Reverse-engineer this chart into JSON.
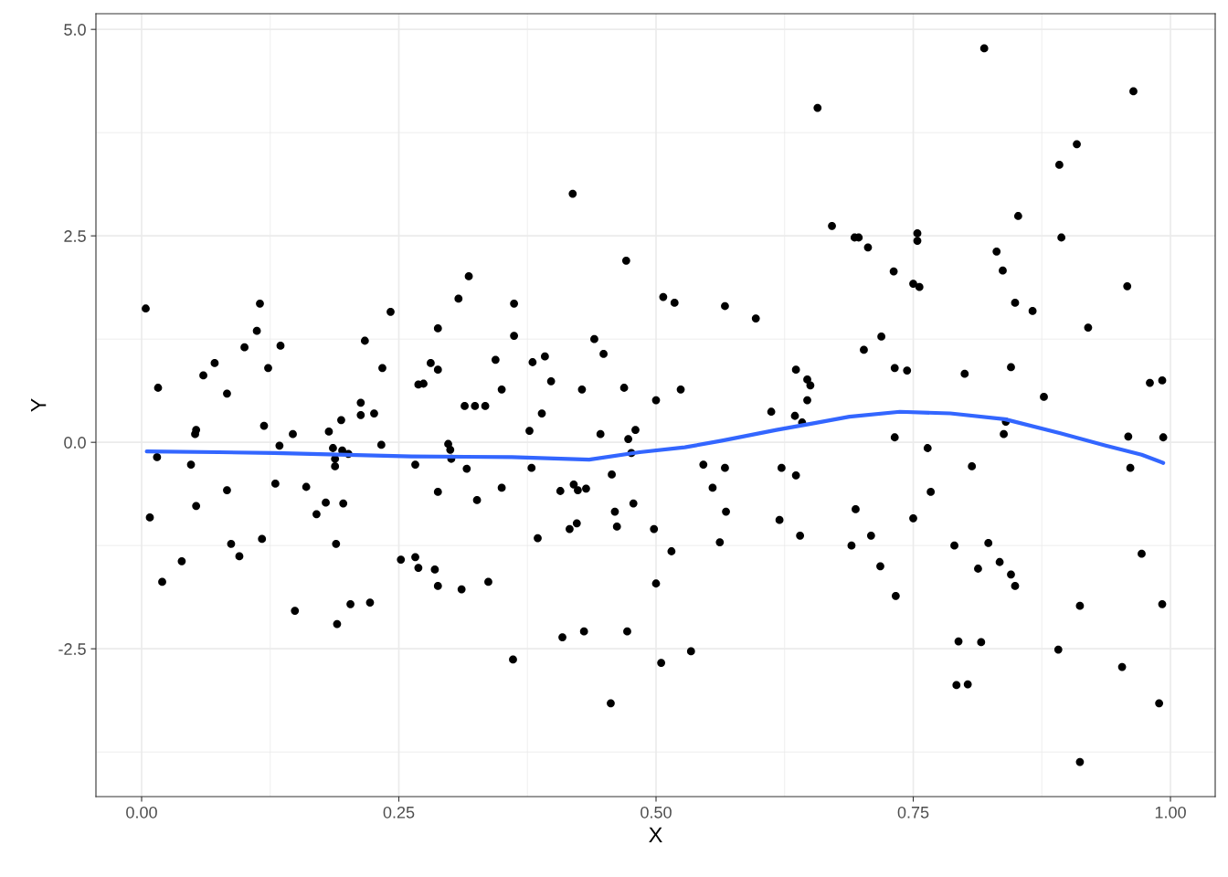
{
  "chart_data": {
    "type": "scatter",
    "xlabel": "X",
    "ylabel": "Y",
    "xlim": [
      -0.0444,
      1.0435
    ],
    "ylim": [
      -4.29,
      5.19
    ],
    "xticks": [
      {
        "value": 0,
        "label": "0.00"
      },
      {
        "value": 0.25,
        "label": "0.25"
      },
      {
        "value": 0.5,
        "label": "0.50"
      },
      {
        "value": 0.75,
        "label": "0.75"
      },
      {
        "value": 1,
        "label": "1.00"
      }
    ],
    "yticks": [
      {
        "value": -2.5,
        "label": "-2.5"
      },
      {
        "value": 0,
        "label": "0.0"
      },
      {
        "value": 2.5,
        "label": "2.5"
      },
      {
        "value": 5,
        "label": "5.0"
      }
    ],
    "grid": true,
    "series": [
      {
        "marker": "circle",
        "color": "#000000",
        "x": [
          0.004,
          0.008,
          0.015,
          0.016,
          0.02,
          0.039,
          0.048,
          0.052,
          0.053,
          0.053,
          0.06,
          0.071,
          0.083,
          0.083,
          0.087,
          0.095,
          0.1,
          0.112,
          0.115,
          0.117,
          0.119,
          0.123,
          0.13,
          0.134,
          0.135,
          0.147,
          0.149,
          0.16,
          0.17,
          0.179,
          0.182,
          0.186,
          0.188,
          0.188,
          0.189,
          0.19,
          0.195,
          0.194,
          0.196,
          0.201,
          0.203,
          0.213,
          0.213,
          0.217,
          0.222,
          0.226,
          0.233,
          0.234,
          0.242,
          0.252,
          0.266,
          0.266,
          0.269,
          0.269,
          0.274,
          0.281,
          0.285,
          0.288,
          0.288,
          0.288,
          0.288,
          0.298,
          0.3,
          0.301,
          0.308,
          0.311,
          0.314,
          0.316,
          0.318,
          0.324,
          0.326,
          0.334,
          0.337,
          0.344,
          0.35,
          0.35,
          0.361,
          0.362,
          0.362,
          0.377,
          0.379,
          0.38,
          0.385,
          0.389,
          0.392,
          0.398,
          0.407,
          0.409,
          0.416,
          0.419,
          0.42,
          0.423,
          0.424,
          0.428,
          0.43,
          0.432,
          0.44,
          0.446,
          0.449,
          0.456,
          0.457,
          0.46,
          0.462,
          0.469,
          0.471,
          0.472,
          0.473,
          0.476,
          0.478,
          0.48,
          0.498,
          0.5,
          0.5,
          0.505,
          0.507,
          0.515,
          0.518,
          0.524,
          0.534,
          0.546,
          0.555,
          0.562,
          0.567,
          0.567,
          0.568,
          0.597,
          0.612,
          0.62,
          0.622,
          0.635,
          0.636,
          0.636,
          0.64,
          0.642,
          0.647,
          0.647,
          0.65,
          0.657,
          0.671,
          0.69,
          0.693,
          0.694,
          0.697,
          0.702,
          0.706,
          0.709,
          0.718,
          0.719,
          0.731,
          0.732,
          0.732,
          0.733,
          0.744,
          0.75,
          0.75,
          0.754,
          0.754,
          0.756,
          0.764,
          0.767,
          0.79,
          0.792,
          0.794,
          0.8,
          0.803,
          0.807,
          0.813,
          0.816,
          0.819,
          0.823,
          0.831,
          0.834,
          0.837,
          0.838,
          0.84,
          0.845,
          0.845,
          0.849,
          0.849,
          0.852,
          0.866,
          0.877,
          0.891,
          0.892,
          0.894,
          0.909,
          0.912,
          0.912,
          0.92,
          0.953,
          0.958,
          0.959,
          0.961,
          0.964,
          0.972,
          0.98,
          0.989,
          0.992,
          0.992,
          0.993
        ],
        "values": [
          1.62,
          -0.91,
          -0.18,
          0.66,
          -1.69,
          -1.44,
          -0.27,
          0.1,
          0.15,
          -0.77,
          0.81,
          0.96,
          0.59,
          -0.58,
          -1.23,
          -1.38,
          1.15,
          1.35,
          1.68,
          -1.17,
          0.2,
          0.9,
          -0.5,
          -0.04,
          1.17,
          0.1,
          -2.04,
          -0.54,
          -0.87,
          -0.73,
          0.13,
          -0.07,
          -0.2,
          -0.29,
          -1.23,
          -2.2,
          -0.1,
          0.27,
          -0.74,
          -0.14,
          -1.96,
          0.48,
          0.33,
          1.23,
          -1.94,
          0.35,
          -0.03,
          0.9,
          1.58,
          -1.42,
          -1.39,
          -0.27,
          -1.52,
          0.7,
          0.71,
          0.96,
          -1.54,
          1.38,
          0.88,
          -0.6,
          -1.74,
          -0.02,
          -0.09,
          -0.2,
          1.74,
          -1.78,
          0.44,
          -0.32,
          2.01,
          0.44,
          -0.7,
          0.44,
          -1.69,
          1.0,
          -0.55,
          0.64,
          -2.63,
          1.68,
          1.29,
          0.14,
          -0.31,
          0.97,
          -1.16,
          0.35,
          1.04,
          0.74,
          -0.59,
          -2.36,
          -1.05,
          3.01,
          -0.51,
          -0.98,
          -0.58,
          0.64,
          -2.29,
          -0.56,
          1.25,
          0.1,
          1.07,
          -3.16,
          -0.39,
          -0.84,
          -1.02,
          0.66,
          2.2,
          -2.29,
          0.04,
          -0.13,
          -0.74,
          0.15,
          -1.05,
          0.51,
          -1.71,
          -2.67,
          1.76,
          -1.32,
          1.69,
          0.64,
          -2.53,
          -0.27,
          -0.55,
          -1.21,
          1.65,
          -0.31,
          -0.84,
          1.5,
          0.37,
          -0.94,
          -0.31,
          0.32,
          -0.4,
          0.88,
          -1.13,
          0.24,
          0.51,
          0.76,
          0.69,
          4.05,
          2.62,
          -1.25,
          2.48,
          -0.81,
          2.48,
          1.12,
          2.36,
          -1.13,
          -1.5,
          1.28,
          2.07,
          0.9,
          0.06,
          -1.86,
          0.87,
          -0.92,
          1.92,
          2.53,
          2.44,
          1.88,
          -0.07,
          -0.6,
          -1.25,
          -2.94,
          -2.41,
          0.83,
          -2.93,
          -0.29,
          -1.53,
          -2.42,
          4.77,
          -1.22,
          2.31,
          -1.45,
          2.08,
          0.1,
          0.25,
          -1.6,
          0.91,
          1.69,
          -1.74,
          2.74,
          1.59,
          0.55,
          -2.51,
          3.36,
          2.48,
          3.61,
          -3.87,
          -1.98,
          1.39,
          -2.72,
          1.89,
          0.07,
          -0.31,
          4.25,
          -1.35,
          0.72,
          -3.16,
          -1.96,
          0.75,
          0.06
        ]
      },
      {
        "type": "line",
        "color": "#3366ff",
        "x": [
          0.005,
          0.075,
          0.129,
          0.262,
          0.36,
          0.435,
          0.484,
          0.528,
          0.564,
          0.617,
          0.653,
          0.688,
          0.737,
          0.786,
          0.839,
          0.893,
          0.937,
          0.972,
          0.993
        ],
        "values": [
          -0.11,
          -0.12,
          -0.13,
          -0.17,
          -0.18,
          -0.21,
          -0.12,
          -0.06,
          0.02,
          0.15,
          0.23,
          0.31,
          0.37,
          0.35,
          0.28,
          0.11,
          -0.04,
          -0.15,
          -0.25
        ]
      }
    ]
  }
}
